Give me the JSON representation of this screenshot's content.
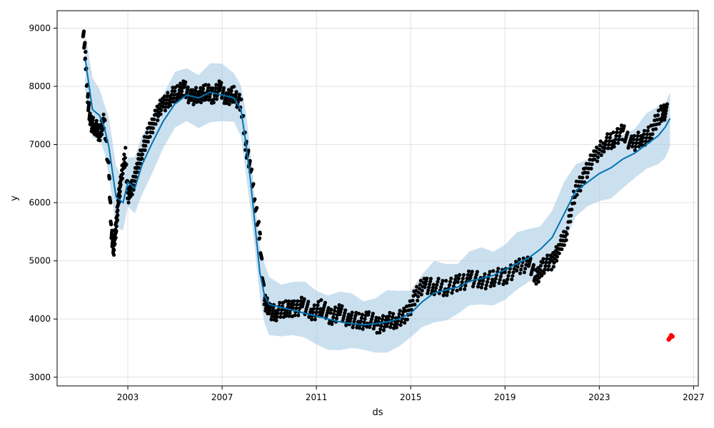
{
  "chart_data": {
    "type": "line",
    "title": "",
    "xlabel": "ds",
    "ylabel": "y",
    "xlim": [
      2000.0,
      2027.2
    ],
    "ylim": [
      2850,
      9300
    ],
    "x_ticks": [
      2003,
      2007,
      2011,
      2015,
      2019,
      2023,
      2027
    ],
    "x_tick_labels": [
      "2003",
      "2007",
      "2011",
      "2015",
      "2019",
      "2023",
      "2027"
    ],
    "y_ticks": [
      3000,
      4000,
      5000,
      6000,
      7000,
      8000,
      9000
    ],
    "y_tick_labels": [
      "3000",
      "4000",
      "5000",
      "6000",
      "7000",
      "8000",
      "9000"
    ],
    "grid": true,
    "colors": {
      "forecast_line": "#0072B2",
      "uncertainty_band": "#a8cce4",
      "observed_points": "#000000",
      "highlight_points": "#ff0000",
      "grid": "#e0e0e0"
    },
    "series": [
      {
        "role": "forecast",
        "x": [
          2001.2,
          2001.5,
          2001.8,
          2002.0,
          2002.2,
          2002.5,
          2002.8,
          2003.0,
          2003.3,
          2003.6,
          2004.0,
          2004.5,
          2005.0,
          2005.5,
          2006.0,
          2006.5,
          2007.0,
          2007.5,
          2007.8,
          2008.0,
          2008.2,
          2008.4,
          2008.6,
          2008.8,
          2009.0,
          2009.5,
          2010.0,
          2010.5,
          2011.0,
          2011.5,
          2012.0,
          2012.5,
          2013.0,
          2013.5,
          2014.0,
          2014.5,
          2015.0,
          2015.5,
          2016.0,
          2016.5,
          2017.0,
          2017.5,
          2018.0,
          2018.5,
          2019.0,
          2019.5,
          2020.0,
          2020.5,
          2021.0,
          2021.5,
          2022.0,
          2022.5,
          2023.0,
          2023.5,
          2024.0,
          2024.5,
          2025.0,
          2025.5,
          2025.8,
          2026.0
        ],
        "y": [
          8450,
          7600,
          7500,
          7300,
          6950,
          6100,
          6000,
          6350,
          6250,
          6650,
          7000,
          7400,
          7700,
          7850,
          7800,
          7900,
          7850,
          7800,
          7600,
          7050,
          6400,
          5600,
          4800,
          4400,
          4250,
          4200,
          4150,
          4100,
          4050,
          4000,
          3950,
          3920,
          3900,
          3920,
          3950,
          4000,
          4100,
          4300,
          4450,
          4500,
          4550,
          4650,
          4700,
          4750,
          4850,
          4950,
          5050,
          5200,
          5400,
          5800,
          6200,
          6350,
          6500,
          6600,
          6750,
          6850,
          7000,
          7150,
          7300,
          7450
        ]
      },
      {
        "role": "observed",
        "x": [
          2001.1,
          2001.2,
          2001.3,
          2001.4,
          2001.6,
          2001.8,
          2002.0,
          2002.2,
          2002.3,
          2002.4,
          2002.5,
          2002.6,
          2002.7,
          2002.9,
          2003.0,
          2003.2,
          2003.4,
          2003.6,
          2003.9,
          2004.2,
          2004.5,
          2004.8,
          2005.1,
          2005.4,
          2005.7,
          2006.0,
          2006.3,
          2006.6,
          2006.9,
          2007.2,
          2007.5,
          2007.8,
          2008.0,
          2008.2,
          2008.4,
          2008.6,
          2008.8,
          2009.0,
          2009.3,
          2009.7,
          2010.0,
          2010.4,
          2010.8,
          2011.2,
          2011.6,
          2012.0,
          2012.4,
          2012.8,
          2013.2,
          2013.6,
          2014.0,
          2014.4,
          2014.8,
          2015.2,
          2015.6,
          2016.0,
          2016.5,
          2017.0,
          2017.5,
          2018.0,
          2018.5,
          2019.0,
          2019.5,
          2020.0,
          2020.3,
          2020.6,
          2021.0,
          2021.3,
          2021.6,
          2022.0,
          2022.4,
          2022.8,
          2023.2,
          2023.6,
          2024.0,
          2024.4,
          2024.8,
          2025.2,
          2025.6
        ],
        "y": [
          9000,
          8500,
          7800,
          7400,
          7300,
          7200,
          7400,
          6500,
          5500,
          5200,
          5600,
          6000,
          6400,
          6800,
          6100,
          6300,
          6600,
          6900,
          7200,
          7500,
          7700,
          7800,
          7900,
          7950,
          7800,
          7850,
          7900,
          7850,
          7950,
          7800,
          7850,
          7700,
          7000,
          6600,
          6000,
          5400,
          4300,
          4150,
          4100,
          4200,
          4150,
          4250,
          4100,
          4200,
          4050,
          4100,
          4000,
          3950,
          4000,
          3900,
          3950,
          4000,
          4050,
          4400,
          4600,
          4550,
          4550,
          4600,
          4700,
          4650,
          4700,
          4750,
          4850,
          5000,
          4700,
          4900,
          5000,
          5200,
          5500,
          6200,
          6500,
          6800,
          7000,
          7100,
          7200,
          7000,
          7100,
          7200,
          7550
        ]
      },
      {
        "role": "highlighted",
        "x": [
          2025.95,
          2026.0,
          2026.05,
          2026.1
        ],
        "y": [
          3650,
          3680,
          3720,
          3700
        ]
      }
    ]
  }
}
